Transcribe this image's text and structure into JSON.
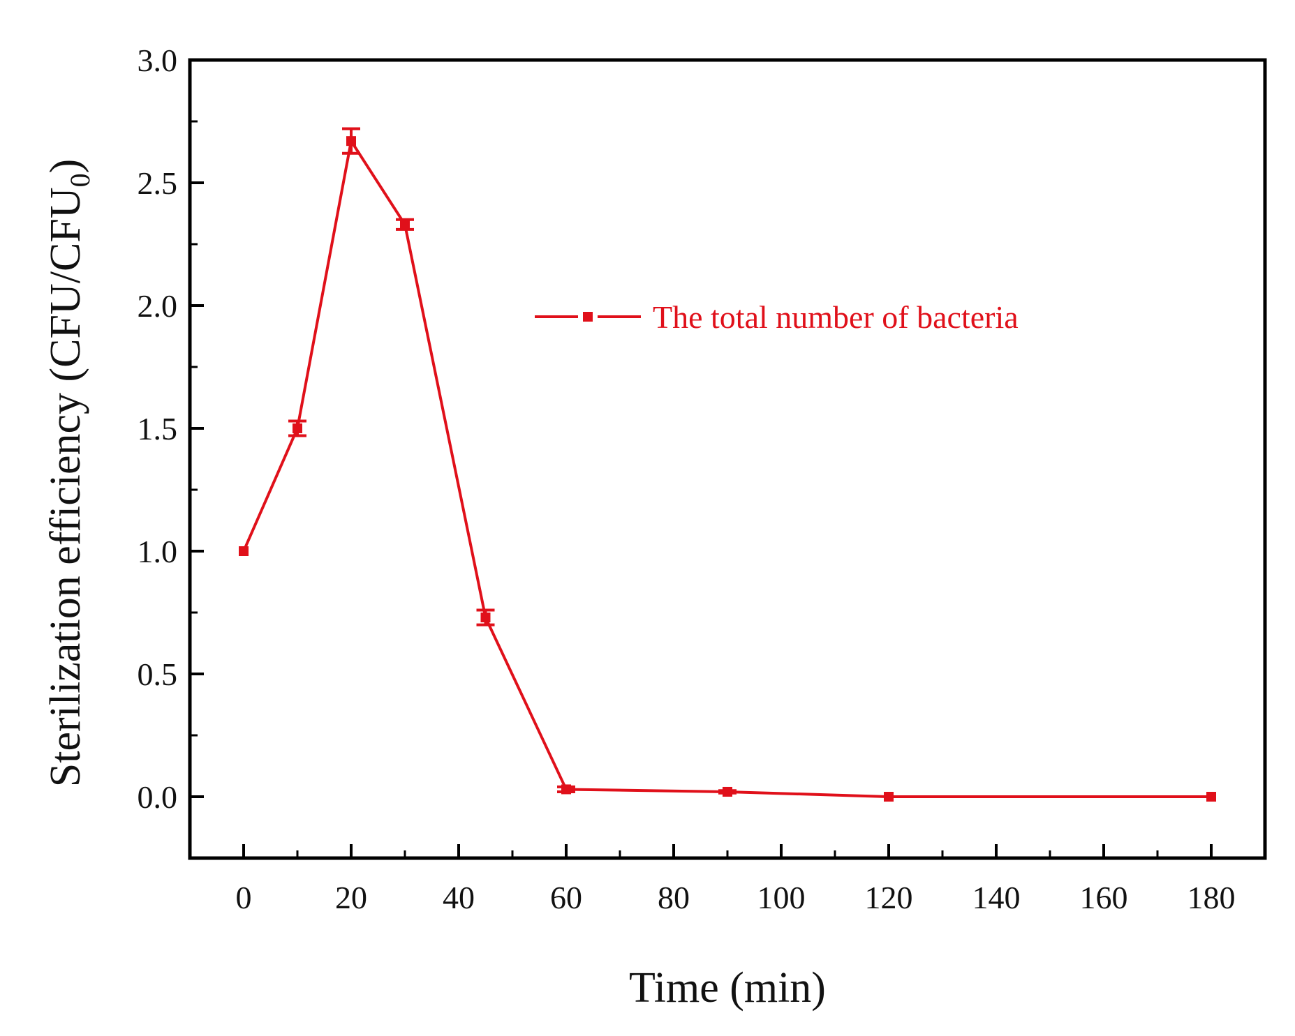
{
  "chart_data": {
    "type": "line",
    "title": "",
    "xlabel": "Time (min)",
    "ylabel_main": "Sterilization efficiency (CFU/CFU",
    "ylabel_subscript": "0",
    "ylabel_close": ")",
    "xlim": [
      -10,
      190
    ],
    "ylim": [
      -0.25,
      3.0
    ],
    "x_ticks": [
      0,
      20,
      40,
      60,
      80,
      100,
      120,
      140,
      160,
      180
    ],
    "x_tick_labels": [
      "0",
      "20",
      "40",
      "60",
      "80",
      "100",
      "120",
      "140",
      "160",
      "180"
    ],
    "y_ticks": [
      0.0,
      0.5,
      1.0,
      1.5,
      2.0,
      2.5,
      3.0
    ],
    "y_tick_labels": [
      "0.0",
      "0.5",
      "1.0",
      "1.5",
      "2.0",
      "2.5",
      "3.0"
    ],
    "grid": false,
    "legend_position": "upper-right",
    "series": [
      {
        "name": "The total number of bacteria",
        "color": "#e0101a",
        "marker": "square",
        "x": [
          0,
          10,
          20,
          30,
          45,
          60,
          90,
          120,
          180
        ],
        "y": [
          1.0,
          1.5,
          2.67,
          2.33,
          0.73,
          0.03,
          0.02,
          0.0,
          0.0
        ],
        "error": [
          0.0,
          0.03,
          0.05,
          0.02,
          0.03,
          0.01,
          0.005,
          0.0,
          0.0
        ]
      }
    ]
  }
}
